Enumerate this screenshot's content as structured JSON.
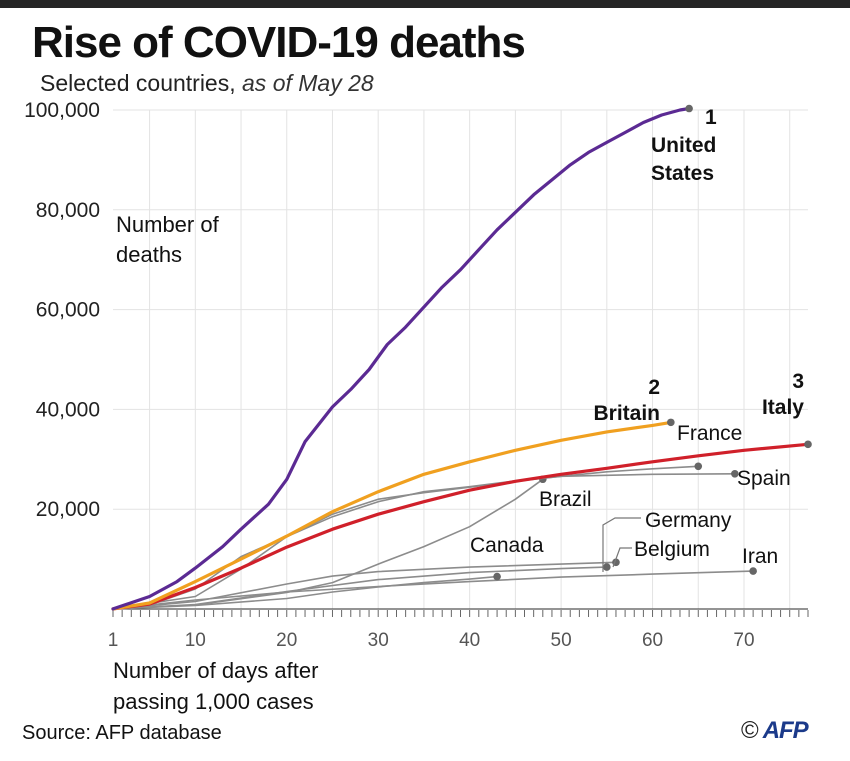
{
  "header": {
    "title": "Rise of COVID-19 deaths",
    "subtitle": "Selected countries,",
    "subtitle_date": "as of May 28"
  },
  "footer": {
    "source": "Source: AFP database",
    "copyright": "©",
    "logo": "AFP"
  },
  "chart_data": {
    "type": "line",
    "title": "Rise of COVID-19 deaths",
    "subtitle": "Selected countries, as of May 28",
    "ylabel": "Number of deaths",
    "xlabel": "Number of days after passing 1,000 cases",
    "xlim": [
      1,
      77
    ],
    "ylim": [
      0,
      100000
    ],
    "x_ticks": [
      "1",
      "10",
      "20",
      "30",
      "40",
      "50",
      "60",
      "70"
    ],
    "y_ticks": [
      "20,000",
      "40,000",
      "60,000",
      "80,000",
      "100,000"
    ],
    "grid": true,
    "series": [
      {
        "name": "Iran",
        "label_lines": [
          "Iran"
        ],
        "color": "#8c8c8c",
        "width": 1.6,
        "bold": false,
        "points": [
          [
            1,
            30
          ],
          [
            10,
            1800
          ],
          [
            20,
            3400
          ],
          [
            30,
            4500
          ],
          [
            40,
            5500
          ],
          [
            50,
            6400
          ],
          [
            60,
            7000
          ],
          [
            71,
            7600
          ]
        ]
      },
      {
        "name": "Canada",
        "label_lines": [
          "Canada"
        ],
        "color": "#8c8c8c",
        "width": 1.6,
        "bold": false,
        "points": [
          [
            1,
            20
          ],
          [
            10,
            700
          ],
          [
            20,
            2100
          ],
          [
            25,
            3400
          ],
          [
            30,
            4400
          ],
          [
            35,
            5300
          ],
          [
            40,
            6000
          ],
          [
            43,
            6500
          ]
        ]
      },
      {
        "name": "Belgium",
        "label_lines": [
          "Belgium"
        ],
        "color": "#8c8c8c",
        "width": 1.6,
        "bold": false,
        "points": [
          [
            1,
            30
          ],
          [
            10,
            1500
          ],
          [
            20,
            5000
          ],
          [
            25,
            6600
          ],
          [
            30,
            7500
          ],
          [
            40,
            8400
          ],
          [
            50,
            9000
          ],
          [
            56,
            9350
          ]
        ]
      },
      {
        "name": "Germany",
        "label_lines": [
          "Germany"
        ],
        "color": "#8c8c8c",
        "width": 1.6,
        "bold": false,
        "points": [
          [
            1,
            20
          ],
          [
            10,
            900
          ],
          [
            20,
            3500
          ],
          [
            30,
            5900
          ],
          [
            40,
            7300
          ],
          [
            50,
            8100
          ],
          [
            55,
            8400
          ]
        ]
      },
      {
        "name": "Brazil",
        "label_lines": [
          "Brazil"
        ],
        "color": "#8c8c8c",
        "width": 1.6,
        "bold": false,
        "points": [
          [
            1,
            30
          ],
          [
            10,
            800
          ],
          [
            20,
            3300
          ],
          [
            25,
            5300
          ],
          [
            30,
            9000
          ],
          [
            35,
            12500
          ],
          [
            40,
            16500
          ],
          [
            45,
            22000
          ],
          [
            48,
            26000
          ]
        ]
      },
      {
        "name": "Spain",
        "label_lines": [
          "Spain"
        ],
        "color": "#8c8c8c",
        "width": 1.6,
        "bold": false,
        "points": [
          [
            1,
            30
          ],
          [
            5,
            800
          ],
          [
            10,
            4000
          ],
          [
            15,
            10500
          ],
          [
            20,
            14500
          ],
          [
            25,
            18500
          ],
          [
            30,
            21500
          ],
          [
            35,
            23500
          ],
          [
            40,
            24500
          ],
          [
            45,
            25700
          ],
          [
            50,
            26600
          ],
          [
            55,
            26800
          ],
          [
            60,
            27000
          ],
          [
            69,
            27100
          ]
        ]
      },
      {
        "name": "France",
        "label_lines": [
          "France"
        ],
        "color": "#8c8c8c",
        "width": 1.6,
        "bold": false,
        "points": [
          [
            1,
            30
          ],
          [
            10,
            2500
          ],
          [
            15,
            8000
          ],
          [
            20,
            14500
          ],
          [
            25,
            19000
          ],
          [
            30,
            22000
          ],
          [
            35,
            23300
          ],
          [
            40,
            24400
          ],
          [
            45,
            25600
          ],
          [
            50,
            26600
          ],
          [
            55,
            27500
          ],
          [
            60,
            28100
          ],
          [
            65,
            28600
          ]
        ]
      },
      {
        "name": "Italy",
        "label_lines": [
          "3",
          "Italy"
        ],
        "color": "#d0202a",
        "width": 3.2,
        "bold": true,
        "points": [
          [
            1,
            30
          ],
          [
            5,
            1000
          ],
          [
            10,
            4300
          ],
          [
            15,
            8200
          ],
          [
            20,
            12400
          ],
          [
            25,
            16000
          ],
          [
            30,
            19000
          ],
          [
            35,
            21500
          ],
          [
            40,
            23800
          ],
          [
            45,
            25600
          ],
          [
            50,
            27000
          ],
          [
            55,
            28200
          ],
          [
            60,
            29500
          ],
          [
            65,
            30700
          ],
          [
            70,
            31800
          ],
          [
            77,
            33000
          ]
        ]
      },
      {
        "name": "Britain",
        "label_lines": [
          "2",
          "Britain"
        ],
        "color": "#f0a020",
        "width": 3.2,
        "bold": true,
        "points": [
          [
            1,
            30
          ],
          [
            5,
            1200
          ],
          [
            10,
            5500
          ],
          [
            15,
            10000
          ],
          [
            20,
            14600
          ],
          [
            25,
            19500
          ],
          [
            30,
            23500
          ],
          [
            35,
            27000
          ],
          [
            40,
            29500
          ],
          [
            45,
            31800
          ],
          [
            50,
            33800
          ],
          [
            55,
            35500
          ],
          [
            60,
            36800
          ],
          [
            62,
            37400
          ]
        ]
      },
      {
        "name": "United States",
        "label_lines": [
          "1",
          "United",
          "States"
        ],
        "color": "#5b2a93",
        "width": 3.2,
        "bold": true,
        "points": [
          [
            1,
            30
          ],
          [
            5,
            2500
          ],
          [
            8,
            5500
          ],
          [
            10,
            8200
          ],
          [
            13,
            12500
          ],
          [
            15,
            16000
          ],
          [
            18,
            21000
          ],
          [
            20,
            26000
          ],
          [
            22,
            33500
          ],
          [
            25,
            40500
          ],
          [
            27,
            44000
          ],
          [
            29,
            48000
          ],
          [
            31,
            53000
          ],
          [
            33,
            56500
          ],
          [
            35,
            60500
          ],
          [
            37,
            64500
          ],
          [
            39,
            68000
          ],
          [
            41,
            72000
          ],
          [
            43,
            76000
          ],
          [
            45,
            79500
          ],
          [
            47,
            83000
          ],
          [
            49,
            86000
          ],
          [
            51,
            89000
          ],
          [
            53,
            91500
          ],
          [
            55,
            93500
          ],
          [
            57,
            95500
          ],
          [
            59,
            97500
          ],
          [
            61,
            99000
          ],
          [
            63,
            100000
          ],
          [
            64,
            100300
          ]
        ]
      }
    ]
  }
}
